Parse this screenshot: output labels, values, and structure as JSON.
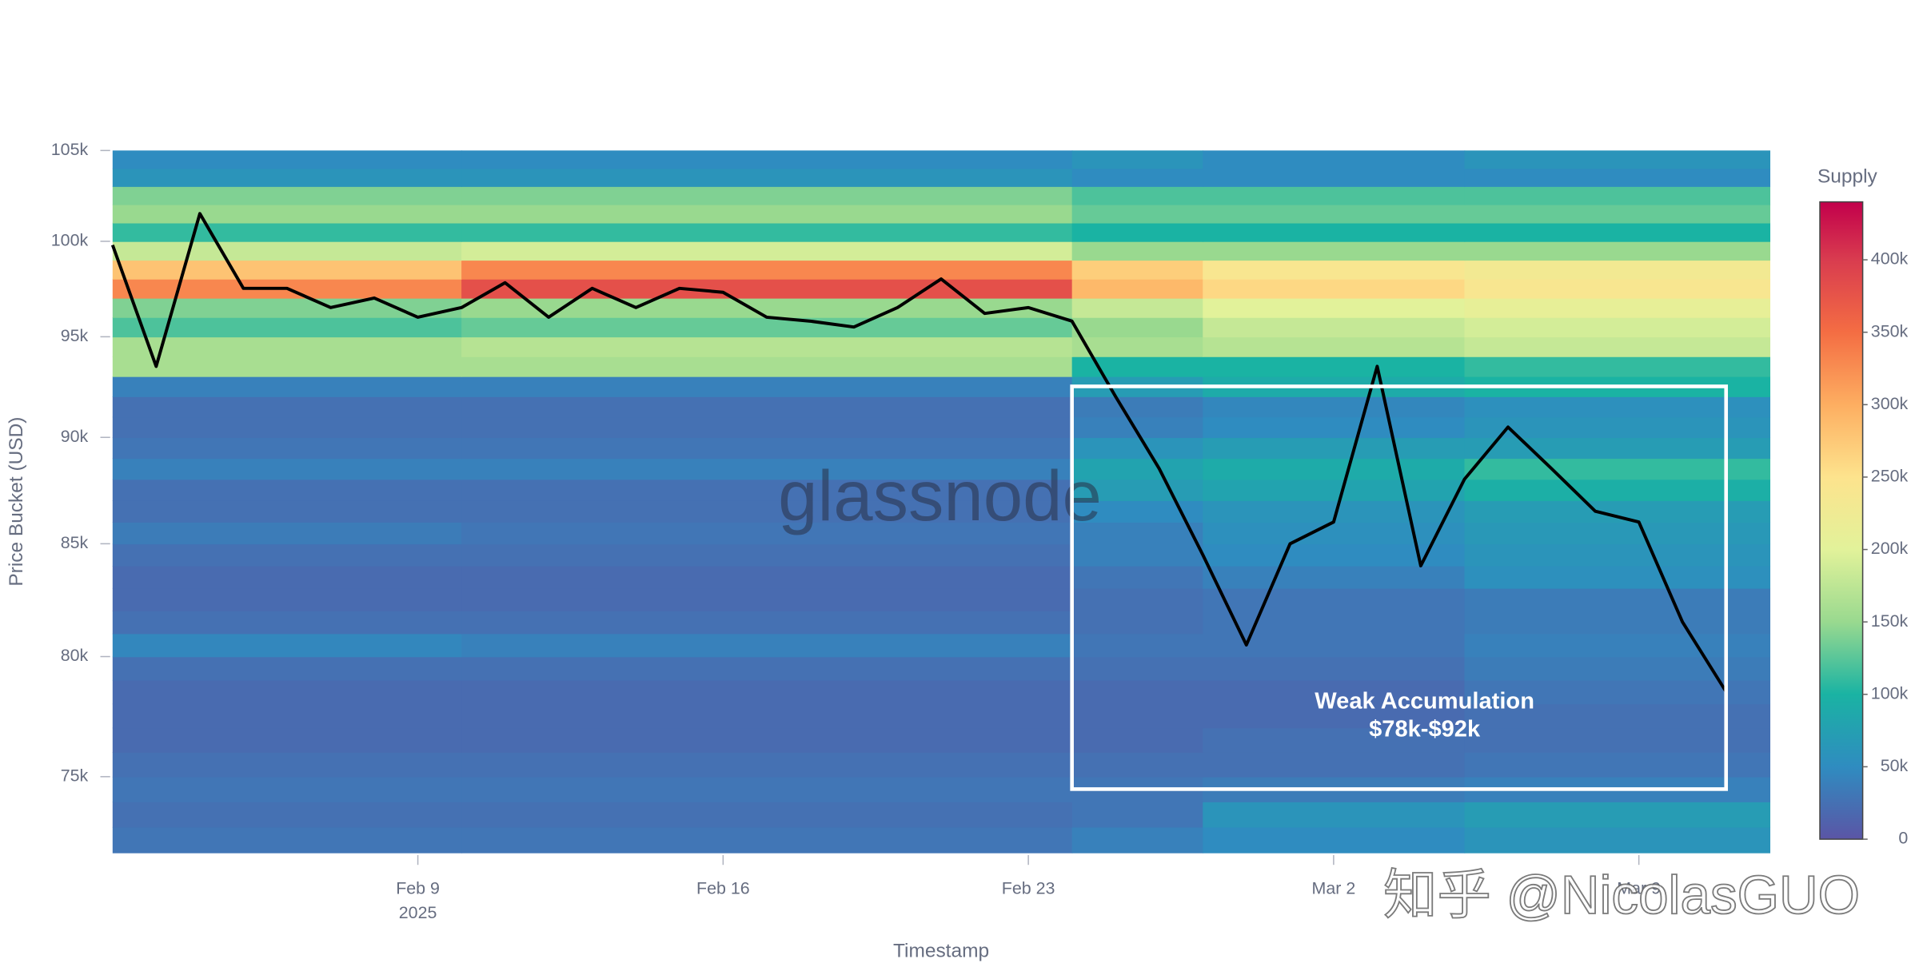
{
  "chart_data": {
    "type": "heatmap",
    "y_label": "Price Bucket (USD)",
    "x_label": "Timestamp",
    "colorbar_title": "Supply",
    "log_y": true,
    "ylim": [
      72000,
      105000
    ],
    "yticks": [
      {
        "value": 75000,
        "label": "75k"
      },
      {
        "value": 80000,
        "label": "80k"
      },
      {
        "value": 85000,
        "label": "85k"
      },
      {
        "value": 90000,
        "label": "90k"
      },
      {
        "value": 95000,
        "label": "95k"
      },
      {
        "value": 100000,
        "label": "100k"
      },
      {
        "value": 105000,
        "label": "105k"
      }
    ],
    "xlim": [
      "2025-02-02",
      "2025-03-12"
    ],
    "xticks": [
      {
        "value": "2025-02-09",
        "label": "Feb 9"
      },
      {
        "value": "2025-02-16",
        "label": "Feb 16"
      },
      {
        "value": "2025-02-23",
        "label": "Feb 23"
      },
      {
        "value": "2025-03-02",
        "label": "Mar 2"
      },
      {
        "value": "2025-03-09",
        "label": "Mar 9"
      }
    ],
    "x_year_label": "2025",
    "clim": [
      0,
      440000
    ],
    "cticks": [
      {
        "value": 0,
        "label": "0"
      },
      {
        "value": 50000,
        "label": "50k"
      },
      {
        "value": 100000,
        "label": "100k"
      },
      {
        "value": 150000,
        "label": "150k"
      },
      {
        "value": 200000,
        "label": "200k"
      },
      {
        "value": 250000,
        "label": "250k"
      },
      {
        "value": 300000,
        "label": "300k"
      },
      {
        "value": 350000,
        "label": "350k"
      },
      {
        "value": 400000,
        "label": "400k"
      }
    ],
    "colorscale": [
      [
        0,
        "#5b55a6"
      ],
      [
        50000,
        "#2f8cc0"
      ],
      [
        100000,
        "#1ab3a3"
      ],
      [
        150000,
        "#99d98f"
      ],
      [
        200000,
        "#e2f29a"
      ],
      [
        250000,
        "#fde38d"
      ],
      [
        300000,
        "#fdae61"
      ],
      [
        350000,
        "#f46d43"
      ],
      [
        400000,
        "#d93c4f"
      ],
      [
        440000,
        "#c2004b"
      ]
    ],
    "heatmap": {
      "time_bins": [
        "2025-02-02",
        "2025-02-10",
        "2025-02-24",
        "2025-02-27",
        "2025-03-05",
        "2025-03-12"
      ],
      "price_bins": [
        72000,
        73000,
        74000,
        75000,
        76000,
        77000,
        78000,
        79000,
        80000,
        81000,
        82000,
        83000,
        84000,
        85000,
        86000,
        87000,
        88000,
        89000,
        90000,
        91000,
        92000,
        93000,
        94000,
        95000,
        96000,
        97000,
        98000,
        99000,
        100000,
        101000,
        102000,
        103000,
        104000,
        105000
      ],
      "values": [
        [
          30000,
          30000,
          40000,
          50000,
          60000
        ],
        [
          25000,
          25000,
          30000,
          60000,
          70000
        ],
        [
          30000,
          30000,
          30000,
          35000,
          40000
        ],
        [
          25000,
          25000,
          25000,
          25000,
          30000
        ],
        [
          20000,
          20000,
          20000,
          25000,
          25000
        ],
        [
          20000,
          20000,
          20000,
          20000,
          25000
        ],
        [
          20000,
          20000,
          20000,
          20000,
          30000
        ],
        [
          25000,
          25000,
          25000,
          25000,
          35000
        ],
        [
          45000,
          40000,
          30000,
          30000,
          40000
        ],
        [
          25000,
          25000,
          25000,
          30000,
          35000
        ],
        [
          20000,
          20000,
          25000,
          30000,
          35000
        ],
        [
          20000,
          20000,
          30000,
          40000,
          55000
        ],
        [
          25000,
          25000,
          40000,
          50000,
          60000
        ],
        [
          35000,
          30000,
          40000,
          55000,
          65000
        ],
        [
          25000,
          25000,
          50000,
          60000,
          70000
        ],
        [
          25000,
          25000,
          70000,
          80000,
          95000
        ],
        [
          40000,
          40000,
          80000,
          90000,
          110000
        ],
        [
          30000,
          30000,
          60000,
          70000,
          70000
        ],
        [
          25000,
          25000,
          40000,
          50000,
          60000
        ],
        [
          25000,
          25000,
          35000,
          45000,
          55000
        ],
        [
          40000,
          40000,
          70000,
          90000,
          100000
        ],
        [
          160000,
          160000,
          100000,
          100000,
          110000
        ],
        [
          160000,
          170000,
          160000,
          170000,
          180000
        ],
        [
          120000,
          130000,
          150000,
          180000,
          190000
        ],
        [
          140000,
          150000,
          180000,
          200000,
          210000
        ],
        [
          330000,
          380000,
          290000,
          260000,
          240000
        ],
        [
          280000,
          330000,
          270000,
          240000,
          230000
        ],
        [
          180000,
          190000,
          150000,
          150000,
          150000
        ],
        [
          110000,
          110000,
          100000,
          100000,
          100000
        ],
        [
          150000,
          150000,
          130000,
          130000,
          130000
        ],
        [
          140000,
          140000,
          120000,
          120000,
          120000
        ],
        [
          60000,
          60000,
          50000,
          50000,
          50000
        ],
        [
          50000,
          50000,
          60000,
          50000,
          60000
        ]
      ]
    },
    "line": {
      "color": "#000000",
      "x": [
        "2025-02-02",
        "2025-02-03",
        "2025-02-04",
        "2025-02-05",
        "2025-02-06",
        "2025-02-07",
        "2025-02-08",
        "2025-02-09",
        "2025-02-10",
        "2025-02-11",
        "2025-02-12",
        "2025-02-13",
        "2025-02-14",
        "2025-02-15",
        "2025-02-16",
        "2025-02-17",
        "2025-02-18",
        "2025-02-19",
        "2025-02-20",
        "2025-02-21",
        "2025-02-22",
        "2025-02-23",
        "2025-02-24",
        "2025-02-25",
        "2025-02-26",
        "2025-02-27",
        "2025-02-28",
        "2025-03-01",
        "2025-03-02",
        "2025-03-03",
        "2025-03-04",
        "2025-03-05",
        "2025-03-06",
        "2025-03-07",
        "2025-03-08",
        "2025-03-09",
        "2025-03-10",
        "2025-03-11"
      ],
      "values": [
        99800,
        93500,
        101500,
        97500,
        97500,
        96500,
        97000,
        96000,
        96500,
        97800,
        96000,
        97500,
        96500,
        97500,
        97300,
        96000,
        95800,
        95500,
        96500,
        98000,
        96200,
        96500,
        95800,
        92000,
        88500,
        84500,
        80500,
        85000,
        86000,
        93500,
        84000,
        88000,
        90500,
        88500,
        86500,
        86000,
        81500,
        78500
      ]
    },
    "annotation": {
      "lines": [
        "Weak Accumulation",
        "$78k-$92k"
      ],
      "box": {
        "x0": "2025-02-24",
        "x1": "2025-03-11",
        "y0": 74500,
        "y1": 92500
      }
    },
    "watermarks": [
      "glassnode",
      "知乎 @NicolasGUO"
    ]
  }
}
